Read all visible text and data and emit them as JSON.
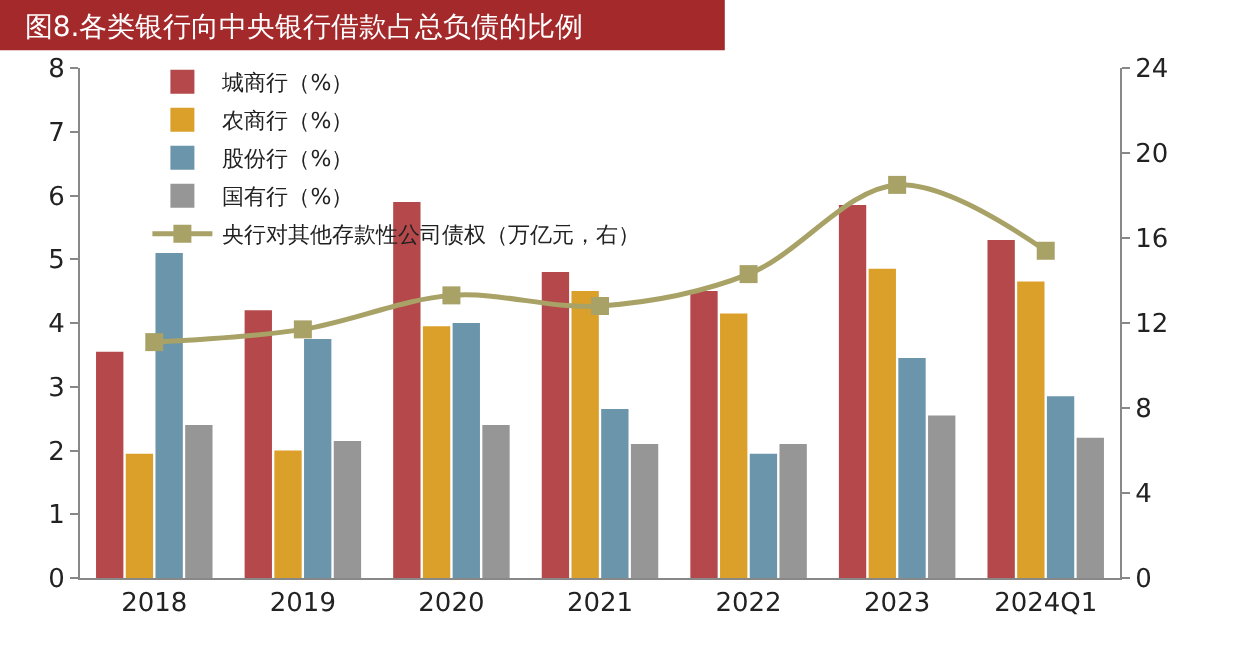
{
  "chart_data": {
    "type": "bar",
    "title": "图8.各类银行向中央银行借款占总负债的比例",
    "categories": [
      "2018",
      "2019",
      "2020",
      "2021",
      "2022",
      "2023",
      "2024Q1"
    ],
    "series": [
      {
        "name": "城商行（%）",
        "color": "#b5484a",
        "values": [
          3.55,
          4.2,
          5.9,
          4.8,
          4.5,
          5.85,
          5.3
        ]
      },
      {
        "name": "农商行（%）",
        "color": "#dba02a",
        "values": [
          1.95,
          2.0,
          3.95,
          4.5,
          4.15,
          4.85,
          4.65
        ]
      },
      {
        "name": "股份行（%）",
        "color": "#6a95ab",
        "values": [
          5.1,
          3.75,
          4.0,
          2.65,
          1.95,
          3.45,
          2.85
        ]
      },
      {
        "name": "国有行（%）",
        "color": "#969696",
        "values": [
          2.4,
          2.15,
          2.4,
          2.1,
          2.1,
          2.55,
          2.2
        ]
      },
      {
        "name": "央行对其他存款性公司债权（万亿元，右）",
        "type": "line",
        "axis": "y2",
        "color": "#a8a266",
        "values": [
          11.1,
          11.7,
          13.3,
          12.8,
          14.3,
          18.5,
          15.4
        ]
      }
    ],
    "ylim": [
      0,
      8
    ],
    "yticks": [
      0,
      1,
      2,
      3,
      4,
      5,
      6,
      7,
      8
    ],
    "y2lim": [
      0,
      24
    ],
    "y2ticks": [
      0,
      4,
      8,
      12,
      16,
      20,
      24
    ],
    "marker": "square",
    "legend": "top left"
  }
}
